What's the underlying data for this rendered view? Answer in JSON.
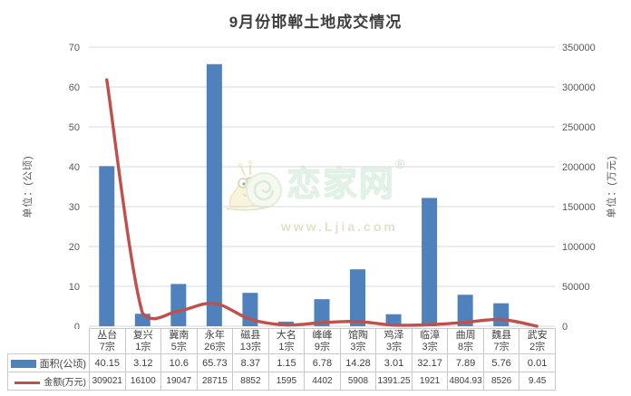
{
  "watermark": {
    "brand": "恋家网",
    "reg": "®",
    "url": "www.Ljia.com"
  },
  "colors": {
    "bar": "#4f81bd",
    "line": "#c0504d",
    "grid": "#d9d9d9",
    "axis_text": "#595959",
    "title_text": "#3f3f3f",
    "table_border": "#c9c9c9",
    "table_text": "#404040"
  },
  "chart_data": {
    "type": "bar+line",
    "title": "9月份邯郸土地成交情况",
    "categories": [
      {
        "name": "丛台",
        "lots": "7宗"
      },
      {
        "name": "复兴",
        "lots": "1宗"
      },
      {
        "name": "冀南",
        "lots": "5宗"
      },
      {
        "name": "永年",
        "lots": "26宗"
      },
      {
        "name": "磁县",
        "lots": "13宗"
      },
      {
        "name": "大名",
        "lots": "1宗"
      },
      {
        "name": "峰峰",
        "lots": "9宗"
      },
      {
        "name": "馆陶",
        "lots": "3宗"
      },
      {
        "name": "鸡泽",
        "lots": "3宗"
      },
      {
        "name": "临漳",
        "lots": "3宗"
      },
      {
        "name": "曲周",
        "lots": "8宗"
      },
      {
        "name": "魏县",
        "lots": "7宗"
      },
      {
        "name": "武安",
        "lots": "2宗"
      }
    ],
    "series": [
      {
        "name": "面积(公顷)",
        "type": "bar",
        "axis": "left",
        "color": "#4f81bd",
        "values": [
          40.15,
          3.12,
          10.6,
          65.73,
          8.37,
          1.15,
          6.78,
          14.28,
          3.01,
          32.17,
          7.89,
          5.76,
          0.01
        ],
        "display": [
          "40.15",
          "3.12",
          "10.6",
          "65.73",
          "8.37",
          "1.15",
          "6.78",
          "14.28",
          "3.01",
          "32.17",
          "7.89",
          "5.76",
          "0.01"
        ]
      },
      {
        "name": "金额(万元)",
        "type": "line",
        "axis": "right",
        "color": "#c0504d",
        "values": [
          309021,
          16100,
          19047,
          28715,
          8852,
          1595,
          4402,
          5908,
          1391.25,
          1921,
          4804.93,
          8526,
          9.45
        ],
        "display": [
          "309021",
          "16100",
          "19047",
          "28715",
          "8852",
          "1595",
          "4402",
          "5908",
          "1391.25",
          "1921",
          "4804.93",
          "8526",
          "9.45"
        ]
      }
    ],
    "left_axis": {
      "title": "单位：(公顷)",
      "min": 0,
      "max": 70,
      "step": 10,
      "ticks": [
        "0",
        "10",
        "20",
        "30",
        "40",
        "50",
        "60",
        "70"
      ]
    },
    "right_axis": {
      "title": "单位：(万元)",
      "min": 0,
      "max": 350000,
      "step": 50000,
      "ticks": [
        "0",
        "50000",
        "100000",
        "150000",
        "200000",
        "250000",
        "300000",
        "350000"
      ]
    },
    "grid": true,
    "legend_position": "table-left"
  }
}
